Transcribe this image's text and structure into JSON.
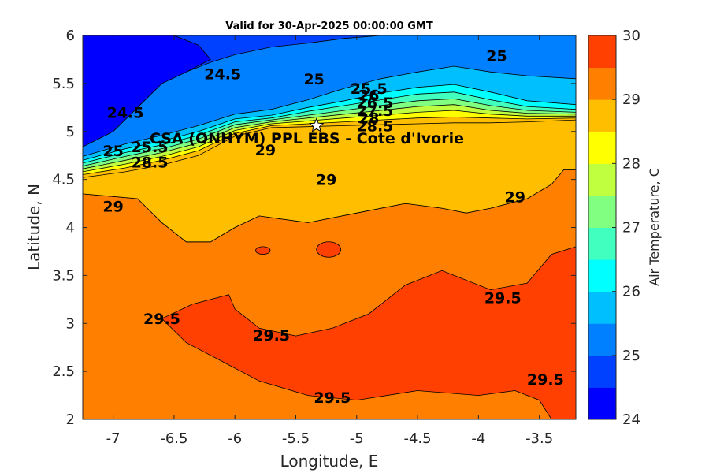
{
  "chart_data": {
    "type": "heatmap",
    "title": "Valid for 30-Apr-2025 00:00:00 GMT",
    "xlabel": "Longitude, E",
    "ylabel": "Latitude, N",
    "xlim": [
      -7.25,
      -3.2
    ],
    "ylim": [
      2,
      6
    ],
    "x_ticks": [
      -7,
      -6.5,
      -6,
      -5.5,
      -5,
      -4.5,
      -4,
      -3.5
    ],
    "y_ticks": [
      2,
      2.5,
      3,
      3.5,
      4,
      4.5,
      5,
      5.5,
      6
    ],
    "colorbar": {
      "label": "Air Temperature, C",
      "min": 24,
      "max": 30,
      "step": 0.5,
      "ticks": [
        24,
        25,
        26,
        27,
        28,
        29,
        30
      ],
      "colors": [
        "#0000ff",
        "#0040ff",
        "#0080ff",
        "#00bfff",
        "#00ffff",
        "#40ffbf",
        "#80ff80",
        "#bfff40",
        "#ffff00",
        "#ffbf00",
        "#ff8000",
        "#ff4000"
      ]
    },
    "station": {
      "name": "CSA (ONHYM) PPL EBS - Cote d'Ivorie",
      "lon": -5.33,
      "lat": 5.06
    },
    "contour_labels": [
      {
        "text": "24.5",
        "lon": -6.1,
        "lat": 5.6
      },
      {
        "text": "24.5",
        "lon": -6.9,
        "lat": 5.2
      },
      {
        "text": "25",
        "lon": -5.35,
        "lat": 5.55
      },
      {
        "text": "25",
        "lon": -3.85,
        "lat": 5.79
      },
      {
        "text": "25",
        "lon": -7.0,
        "lat": 4.8
      },
      {
        "text": "25.5",
        "lon": -4.9,
        "lat": 5.45
      },
      {
        "text": "25.5",
        "lon": -6.7,
        "lat": 4.84
      },
      {
        "text": "26",
        "lon": -4.9,
        "lat": 5.38
      },
      {
        "text": "26.5",
        "lon": -4.85,
        "lat": 5.3
      },
      {
        "text": "27.5",
        "lon": -4.85,
        "lat": 5.22
      },
      {
        "text": "28",
        "lon": -4.9,
        "lat": 5.14
      },
      {
        "text": "28.5",
        "lon": -4.85,
        "lat": 5.06
      },
      {
        "text": "28.5",
        "lon": -6.7,
        "lat": 4.68
      },
      {
        "text": "29",
        "lon": -5.75,
        "lat": 4.81
      },
      {
        "text": "29",
        "lon": -5.25,
        "lat": 4.5
      },
      {
        "text": "29",
        "lon": -3.7,
        "lat": 4.32
      },
      {
        "text": "29",
        "lon": -7.0,
        "lat": 4.22
      },
      {
        "text": "29.5",
        "lon": -6.6,
        "lat": 3.05
      },
      {
        "text": "29.5",
        "lon": -5.7,
        "lat": 2.88
      },
      {
        "text": "29.5",
        "lon": -5.2,
        "lat": 2.23
      },
      {
        "text": "29.5",
        "lon": -3.8,
        "lat": 3.27
      },
      {
        "text": "29.5",
        "lon": -3.45,
        "lat": 2.42
      }
    ],
    "regions": [
      {
        "value": 29.25,
        "pts": [
          [
            -7.25,
            4.35
          ],
          [
            -6.8,
            4.3
          ],
          [
            -6.6,
            4.05
          ],
          [
            -6.4,
            3.85
          ],
          [
            -6.2,
            3.85
          ],
          [
            -6.0,
            4.0
          ],
          [
            -5.8,
            4.12
          ],
          [
            -5.4,
            4.05
          ],
          [
            -5.0,
            4.15
          ],
          [
            -4.6,
            4.25
          ],
          [
            -4.3,
            4.2
          ],
          [
            -4.1,
            4.15
          ],
          [
            -3.9,
            4.2
          ],
          [
            -3.6,
            4.3
          ],
          [
            -3.4,
            4.45
          ],
          [
            -3.3,
            4.6
          ],
          [
            -3.2,
            4.6
          ],
          [
            -3.2,
            2.0
          ],
          [
            -7.25,
            2.0
          ]
        ]
      },
      {
        "value": 29.75,
        "pts": [
          [
            -6.6,
            3.05
          ],
          [
            -6.35,
            3.2
          ],
          [
            -6.05,
            3.3
          ],
          [
            -6.0,
            3.15
          ],
          [
            -5.8,
            2.95
          ],
          [
            -5.5,
            2.87
          ],
          [
            -5.2,
            2.95
          ],
          [
            -4.9,
            3.1
          ],
          [
            -4.6,
            3.4
          ],
          [
            -4.3,
            3.55
          ],
          [
            -3.9,
            3.35
          ],
          [
            -3.6,
            3.42
          ],
          [
            -3.4,
            3.72
          ],
          [
            -3.2,
            3.8
          ],
          [
            -3.2,
            2.0
          ],
          [
            -3.4,
            2.0
          ],
          [
            -3.5,
            2.2
          ],
          [
            -3.7,
            2.3
          ],
          [
            -4.0,
            2.25
          ],
          [
            -4.5,
            2.3
          ],
          [
            -5.0,
            2.2
          ],
          [
            -5.4,
            2.25
          ],
          [
            -5.8,
            2.4
          ],
          [
            -6.1,
            2.6
          ],
          [
            -6.4,
            2.8
          ]
        ]
      }
    ],
    "blobs": [
      {
        "value": 29.75,
        "lon": -5.77,
        "lat": 3.76,
        "rx": 0.06,
        "ry": 0.04
      },
      {
        "value": 29.75,
        "lon": -5.23,
        "lat": 3.77,
        "rx": 0.1,
        "ry": 0.08
      },
      {
        "value": 28.75,
        "lon": -5.25,
        "lat": 4.52,
        "rx": 0.38,
        "ry": 0.18
      }
    ],
    "bands": [
      {
        "value": 28.75,
        "north": [
          [
            -7.25,
            4.52
          ],
          [
            -6.9,
            4.58
          ],
          [
            -6.6,
            4.65
          ],
          [
            -6.3,
            4.75
          ],
          [
            -6.0,
            4.95
          ],
          [
            -5.7,
            5.04
          ],
          [
            -5.4,
            5.05
          ],
          [
            -5.1,
            5.06
          ],
          [
            -4.8,
            5.07
          ],
          [
            -4.5,
            5.08
          ],
          [
            -4.2,
            5.09
          ],
          [
            -3.9,
            5.09
          ],
          [
            -3.6,
            5.1
          ],
          [
            -3.2,
            5.12
          ]
        ],
        "south": [
          [
            -7.25,
            4.35
          ],
          [
            -6.8,
            4.3
          ],
          [
            -6.6,
            4.05
          ],
          [
            -6.4,
            3.85
          ],
          [
            -6.2,
            3.85
          ],
          [
            -6.0,
            4.0
          ],
          [
            -5.8,
            4.12
          ],
          [
            -5.4,
            4.05
          ],
          [
            -5.0,
            4.15
          ],
          [
            -4.6,
            4.25
          ],
          [
            -4.3,
            4.2
          ],
          [
            -4.1,
            4.15
          ],
          [
            -3.9,
            4.2
          ],
          [
            -3.6,
            4.3
          ],
          [
            -3.4,
            4.45
          ],
          [
            -3.3,
            4.6
          ],
          [
            -3.2,
            4.6
          ]
        ]
      },
      {
        "value": 28.25,
        "north": [
          [
            -7.25,
            4.55
          ],
          [
            -6.9,
            4.62
          ],
          [
            -6.6,
            4.7
          ],
          [
            -6.3,
            4.8
          ],
          [
            -6.0,
            4.98
          ],
          [
            -5.7,
            5.06
          ],
          [
            -5.4,
            5.08
          ],
          [
            -5.1,
            5.1
          ],
          [
            -4.8,
            5.12
          ],
          [
            -4.5,
            5.14
          ],
          [
            -4.2,
            5.15
          ],
          [
            -3.9,
            5.14
          ],
          [
            -3.6,
            5.13
          ],
          [
            -3.2,
            5.14
          ]
        ]
      },
      {
        "value": 27.75,
        "north": [
          [
            -7.25,
            4.58
          ],
          [
            -6.9,
            4.66
          ],
          [
            -6.6,
            4.74
          ],
          [
            -6.3,
            4.84
          ],
          [
            -6.0,
            5.01
          ],
          [
            -5.7,
            5.08
          ],
          [
            -5.4,
            5.11
          ],
          [
            -5.1,
            5.14
          ],
          [
            -4.8,
            5.17
          ],
          [
            -4.5,
            5.2
          ],
          [
            -4.2,
            5.22
          ],
          [
            -3.9,
            5.18
          ],
          [
            -3.6,
            5.16
          ],
          [
            -3.2,
            5.16
          ]
        ]
      },
      {
        "value": 27.25,
        "north": [
          [
            -7.25,
            4.61
          ],
          [
            -6.9,
            4.7
          ],
          [
            -6.6,
            4.78
          ],
          [
            -6.3,
            4.88
          ],
          [
            -6.0,
            5.04
          ],
          [
            -5.7,
            5.1
          ],
          [
            -5.4,
            5.14
          ],
          [
            -5.1,
            5.18
          ],
          [
            -4.8,
            5.22
          ],
          [
            -4.5,
            5.26
          ],
          [
            -4.2,
            5.28
          ],
          [
            -3.9,
            5.22
          ],
          [
            -3.6,
            5.19
          ],
          [
            -3.2,
            5.18
          ]
        ]
      },
      {
        "value": 26.75,
        "north": [
          [
            -7.25,
            4.64
          ],
          [
            -6.9,
            4.74
          ],
          [
            -6.6,
            4.82
          ],
          [
            -6.3,
            4.92
          ],
          [
            -6.0,
            5.07
          ],
          [
            -5.7,
            5.12
          ],
          [
            -5.4,
            5.17
          ],
          [
            -5.1,
            5.22
          ],
          [
            -4.8,
            5.27
          ],
          [
            -4.5,
            5.32
          ],
          [
            -4.2,
            5.34
          ],
          [
            -3.9,
            5.27
          ],
          [
            -3.6,
            5.22
          ],
          [
            -3.2,
            5.2
          ]
        ]
      },
      {
        "value": 26.25,
        "north": [
          [
            -7.25,
            4.67
          ],
          [
            -6.9,
            4.78
          ],
          [
            -6.6,
            4.86
          ],
          [
            -6.3,
            4.96
          ],
          [
            -6.0,
            5.1
          ],
          [
            -5.7,
            5.14
          ],
          [
            -5.4,
            5.21
          ],
          [
            -5.1,
            5.27
          ],
          [
            -4.8,
            5.33
          ],
          [
            -4.5,
            5.39
          ],
          [
            -4.2,
            5.41
          ],
          [
            -3.9,
            5.33
          ],
          [
            -3.6,
            5.26
          ],
          [
            -3.2,
            5.23
          ]
        ]
      },
      {
        "value": 25.75,
        "north": [
          [
            -7.25,
            4.7
          ],
          [
            -6.9,
            4.82
          ],
          [
            -6.6,
            4.9
          ],
          [
            -6.3,
            5.0
          ],
          [
            -6.0,
            5.13
          ],
          [
            -5.7,
            5.17
          ],
          [
            -5.4,
            5.25
          ],
          [
            -5.1,
            5.32
          ],
          [
            -4.8,
            5.4
          ],
          [
            -4.5,
            5.46
          ],
          [
            -4.2,
            5.49
          ],
          [
            -3.9,
            5.41
          ],
          [
            -3.6,
            5.32
          ],
          [
            -3.2,
            5.28
          ]
        ]
      },
      {
        "value": 25.25,
        "north": [
          [
            -7.25,
            4.74
          ],
          [
            -6.9,
            4.87
          ],
          [
            -6.6,
            4.96
          ],
          [
            -6.3,
            5.06
          ],
          [
            -6.0,
            5.18
          ],
          [
            -5.7,
            5.23
          ],
          [
            -5.4,
            5.33
          ],
          [
            -5.1,
            5.45
          ],
          [
            -4.8,
            5.55
          ],
          [
            -4.5,
            5.62
          ],
          [
            -4.2,
            5.68
          ],
          [
            -3.9,
            5.62
          ],
          [
            -3.6,
            5.58
          ],
          [
            -3.2,
            5.55
          ]
        ]
      },
      {
        "value": 24.75,
        "north": [
          [
            -7.25,
            4.84
          ],
          [
            -7.0,
            5.0
          ],
          [
            -6.8,
            5.25
          ],
          [
            -6.6,
            5.5
          ],
          [
            -6.4,
            5.62
          ],
          [
            -6.2,
            5.72
          ],
          [
            -6.0,
            5.8
          ],
          [
            -5.7,
            5.88
          ],
          [
            -5.4,
            5.92
          ],
          [
            -5.1,
            5.97
          ],
          [
            -4.8,
            6.0
          ],
          [
            -4.5,
            6.0
          ],
          [
            -4.2,
            6.0
          ],
          [
            -3.9,
            6.0
          ],
          [
            -3.6,
            6.0
          ],
          [
            -3.2,
            6.0
          ]
        ]
      }
    ],
    "top_region": {
      "value": 24.25,
      "pts": [
        [
          -7.25,
          6.0
        ],
        [
          -6.5,
          6.0
        ],
        [
          -6.3,
          5.9
        ],
        [
          -6.2,
          5.75
        ],
        [
          -6.4,
          5.62
        ],
        [
          -6.6,
          5.5
        ],
        [
          -6.8,
          5.25
        ],
        [
          -7.0,
          5.0
        ],
        [
          -7.25,
          4.84
        ]
      ]
    }
  }
}
